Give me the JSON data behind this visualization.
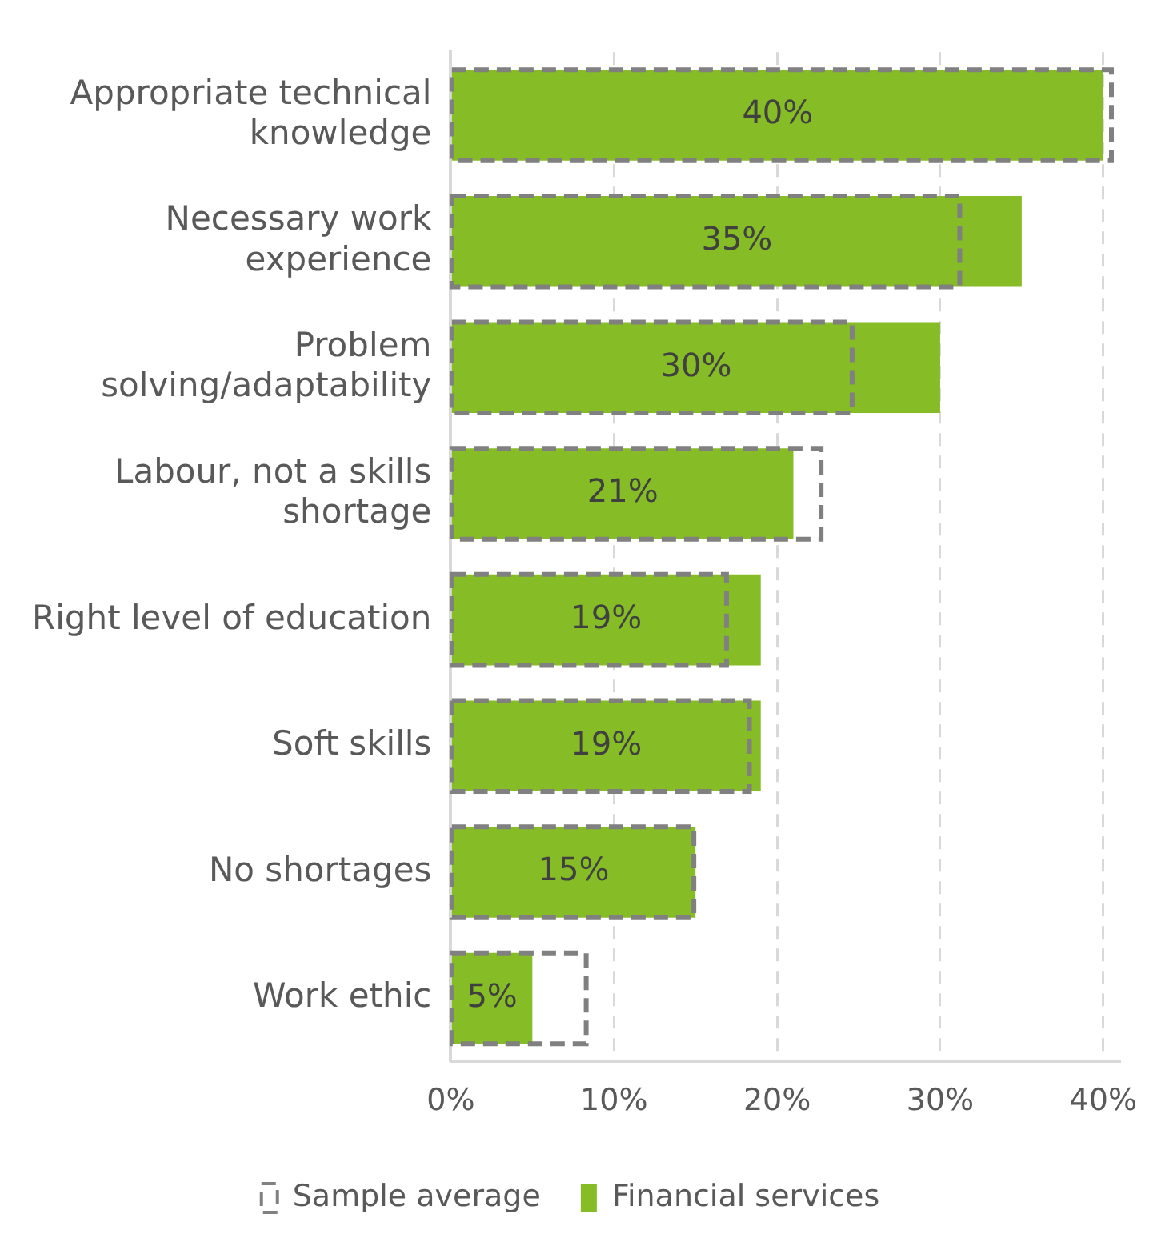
{
  "chart_data": {
    "type": "bar",
    "orientation": "horizontal",
    "categories": [
      "Appropriate technical knowledge",
      "Necessary work experience",
      "Problem solving/adaptability",
      "Labour, not a skills shortage",
      "Right level of education",
      "Soft skills",
      "No shortages",
      "Work ethic"
    ],
    "series": [
      {
        "name": "Sample average",
        "color": "#808080",
        "line_style": "dashed",
        "values": [
          40.5,
          31.2,
          24.6,
          22.7,
          16.9,
          18.3,
          14.9,
          8.3
        ]
      },
      {
        "name": "Financial services",
        "color": "#86bc25",
        "values": [
          40,
          35,
          30,
          21,
          19,
          19,
          15,
          5
        ],
        "value_labels": [
          "40%",
          "35%",
          "30%",
          "21%",
          "19%",
          "19%",
          "15%",
          "5%"
        ]
      }
    ],
    "xlim": [
      0,
      41
    ],
    "xticks": [
      {
        "value": 0,
        "label": "0%"
      },
      {
        "value": 10,
        "label": "10%"
      },
      {
        "value": 20,
        "label": "20%"
      },
      {
        "value": 30,
        "label": "30%"
      },
      {
        "value": 40,
        "label": "40%"
      }
    ],
    "grid": "x",
    "legend": "bottom"
  }
}
